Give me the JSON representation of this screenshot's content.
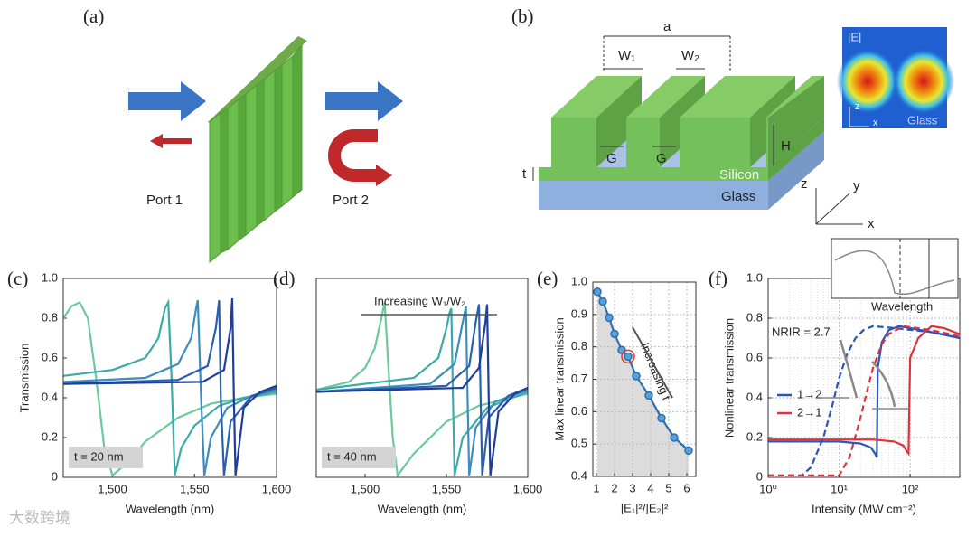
{
  "diagrams": {
    "a": {
      "panel": "(a)",
      "port1": "Port 1",
      "port2": "Port 2"
    },
    "b": {
      "panel": "(b)",
      "period": "a",
      "w1": "W₁",
      "w2": "W₂",
      "gap1": "G",
      "gap2": "G",
      "height": "H",
      "thickness": "t",
      "silicon": "Silicon",
      "glass": "Glass",
      "axis_z": "z",
      "axis_y": "y",
      "axis_x": "x",
      "field_title": "|E|",
      "field_z": "z",
      "field_x": "x",
      "field_glass": "Glass"
    }
  },
  "watermark": "大数跨境",
  "chart_data": [
    {
      "type": "line",
      "panel": "(c)",
      "xlabel": "Wavelength (nm)",
      "ylabel": "Transmission",
      "xlim": [
        1470,
        1600
      ],
      "ylim": [
        0,
        1
      ],
      "xticks": [
        {
          "value": 1500,
          "label": "1,500"
        },
        {
          "value": 1550,
          "label": "1,550"
        },
        {
          "value": 1600,
          "label": "1,600"
        }
      ],
      "yticks": [
        0,
        0.2,
        0.4,
        0.6,
        0.8,
        {
          "value": 1,
          "label": "1.0"
        }
      ],
      "annotations": [
        "t = 20 nm"
      ],
      "series": [
        {
          "color": "#6cc99a",
          "x": [
            1470,
            1475,
            1480,
            1485,
            1490,
            1495,
            1500,
            1510,
            1520,
            1540,
            1560,
            1580,
            1600
          ],
          "values": [
            0.8,
            0.86,
            0.88,
            0.8,
            0.5,
            0.15,
            0.01,
            0.08,
            0.18,
            0.3,
            0.37,
            0.4,
            0.42
          ]
        },
        {
          "color": "#3aaba8",
          "x": [
            1470,
            1500,
            1520,
            1528,
            1532,
            1534,
            1536,
            1538,
            1542,
            1550,
            1565,
            1580,
            1600
          ],
          "values": [
            0.51,
            0.54,
            0.6,
            0.7,
            0.85,
            0.88,
            0.5,
            0.01,
            0.15,
            0.26,
            0.36,
            0.4,
            0.43
          ]
        },
        {
          "color": "#3b8dbf",
          "x": [
            1470,
            1520,
            1540,
            1548,
            1551,
            1552,
            1554,
            1556,
            1560,
            1570,
            1585,
            1600
          ],
          "values": [
            0.48,
            0.5,
            0.57,
            0.7,
            0.85,
            0.89,
            0.4,
            0.01,
            0.2,
            0.35,
            0.41,
            0.44
          ]
        },
        {
          "color": "#2a5fb0",
          "x": [
            1470,
            1540,
            1558,
            1563,
            1565,
            1566,
            1568,
            1572,
            1585,
            1600
          ],
          "values": [
            0.47,
            0.49,
            0.56,
            0.75,
            0.89,
            0.4,
            0.01,
            0.28,
            0.41,
            0.45
          ]
        },
        {
          "color": "#1f3d99",
          "x": [
            1470,
            1555,
            1568,
            1572,
            1573,
            1574,
            1575,
            1580,
            1590,
            1600
          ],
          "values": [
            0.47,
            0.48,
            0.54,
            0.75,
            0.9,
            0.4,
            0.01,
            0.35,
            0.43,
            0.46
          ]
        }
      ]
    },
    {
      "type": "line",
      "panel": "(d)",
      "xlabel": "Wavelength (nm)",
      "xlim": [
        1470,
        1600
      ],
      "ylim": [
        0,
        1
      ],
      "xticks": [
        {
          "value": 1500,
          "label": "1,500"
        },
        {
          "value": 1550,
          "label": "1,550"
        },
        {
          "value": 1600,
          "label": "1,600"
        }
      ],
      "annotations": [
        "Increasing W₁/W₂",
        "t = 40 nm"
      ],
      "series": [
        {
          "color": "#6cc99a",
          "x": [
            1470,
            1490,
            1500,
            1506,
            1510,
            1512,
            1514,
            1517,
            1520,
            1530,
            1550,
            1570,
            1600
          ],
          "values": [
            0.44,
            0.48,
            0.55,
            0.65,
            0.8,
            0.88,
            0.6,
            0.2,
            0.01,
            0.12,
            0.28,
            0.36,
            0.42
          ]
        },
        {
          "color": "#3aaba8",
          "x": [
            1470,
            1530,
            1545,
            1550,
            1552,
            1553,
            1554,
            1555,
            1560,
            1575,
            1600
          ],
          "values": [
            0.44,
            0.5,
            0.6,
            0.75,
            0.83,
            0.85,
            0.4,
            0.01,
            0.2,
            0.35,
            0.43
          ]
        },
        {
          "color": "#3b8dbf",
          "x": [
            1470,
            1540,
            1555,
            1560,
            1562,
            1563,
            1564,
            1568,
            1580,
            1600
          ],
          "values": [
            0.43,
            0.47,
            0.57,
            0.78,
            0.86,
            0.4,
            0.01,
            0.25,
            0.38,
            0.44
          ]
        },
        {
          "color": "#2a5fb0",
          "x": [
            1470,
            1550,
            1564,
            1568,
            1570,
            1571,
            1572,
            1576,
            1588,
            1600
          ],
          "values": [
            0.43,
            0.46,
            0.56,
            0.78,
            0.87,
            0.4,
            0.01,
            0.3,
            0.41,
            0.45
          ]
        },
        {
          "color": "#1f3d99",
          "x": [
            1470,
            1560,
            1570,
            1574,
            1575,
            1576,
            1577,
            1582,
            1592,
            1600
          ],
          "values": [
            0.43,
            0.45,
            0.55,
            0.78,
            0.87,
            0.4,
            0.01,
            0.33,
            0.42,
            0.45
          ]
        }
      ]
    },
    {
      "type": "line",
      "panel": "(e)",
      "xlabel": "|E₁|²/|E₂|²",
      "ylabel": "Max linear transmission",
      "xlim": [
        0.8,
        6.5
      ],
      "ylim": [
        0.4,
        1
      ],
      "xticks": [
        1,
        2,
        3,
        4,
        5,
        6
      ],
      "yticks": [
        0.4,
        0.5,
        0.6,
        0.7,
        0.8,
        0.9,
        {
          "value": 1,
          "label": "1.0"
        }
      ],
      "grid": true,
      "fill": "#dcdcdc",
      "annotations": [
        "Increasing t"
      ],
      "series": [
        {
          "color": "#2b6fb0",
          "markers": true,
          "x": [
            1.05,
            1.35,
            1.7,
            2.0,
            2.4,
            2.75,
            3.2,
            3.9,
            4.6,
            5.3,
            6.1
          ],
          "values": [
            0.97,
            0.94,
            0.89,
            0.84,
            0.79,
            0.77,
            0.71,
            0.65,
            0.58,
            0.52,
            0.48
          ]
        },
        {
          "color": "#e03a3a",
          "ring": true,
          "x": [
            2.75
          ],
          "values": [
            0.77
          ]
        }
      ]
    },
    {
      "type": "line",
      "panel": "(f)",
      "xlabel": "Intensity (MW cm⁻²)",
      "ylabel": "Nonlinear transmission",
      "xlog": true,
      "xlim": [
        1,
        500
      ],
      "ylim": [
        0,
        1
      ],
      "xticks": [
        {
          "value": 1,
          "label": "10⁰"
        },
        {
          "value": 10,
          "label": "10¹"
        },
        {
          "value": 100,
          "label": "10²"
        }
      ],
      "yticks": [
        0,
        0.2,
        0.4,
        0.6,
        0.8,
        {
          "value": 1,
          "label": "1.0"
        }
      ],
      "grid": true,
      "annotations": [
        "NRIR = 2.7",
        "Wavelength"
      ],
      "series": [
        {
          "name": "1→2",
          "color": "#2a56b8",
          "x": [
            1,
            5,
            10,
            20,
            28,
            32,
            34,
            35,
            40,
            50,
            70,
            100,
            200,
            500
          ],
          "values": [
            0.18,
            0.18,
            0.18,
            0.17,
            0.15,
            0.12,
            0.1,
            0.55,
            0.68,
            0.74,
            0.76,
            0.75,
            0.73,
            0.7
          ]
        },
        {
          "name": "2→1",
          "color": "#e0323a",
          "x": [
            1,
            10,
            30,
            60,
            80,
            90,
            95,
            100,
            130,
            200,
            300,
            500
          ],
          "values": [
            0.19,
            0.19,
            0.19,
            0.18,
            0.16,
            0.13,
            0.12,
            0.6,
            0.7,
            0.76,
            0.75,
            0.72
          ]
        },
        {
          "color": "#2a56b8",
          "dashed": true,
          "x": [
            1,
            3,
            4,
            6,
            8,
            10,
            13,
            17,
            22,
            30,
            60,
            200,
            500
          ],
          "values": [
            0.01,
            0.01,
            0.05,
            0.2,
            0.36,
            0.5,
            0.62,
            0.7,
            0.74,
            0.76,
            0.75,
            0.73,
            0.7
          ]
        },
        {
          "color": "#e0323a",
          "dashed": true,
          "x": [
            1,
            10,
            14,
            20,
            25,
            30,
            40,
            50,
            80,
            200,
            500
          ],
          "values": [
            0.01,
            0.01,
            0.1,
            0.3,
            0.44,
            0.55,
            0.67,
            0.72,
            0.76,
            0.74,
            0.71
          ]
        }
      ]
    }
  ]
}
